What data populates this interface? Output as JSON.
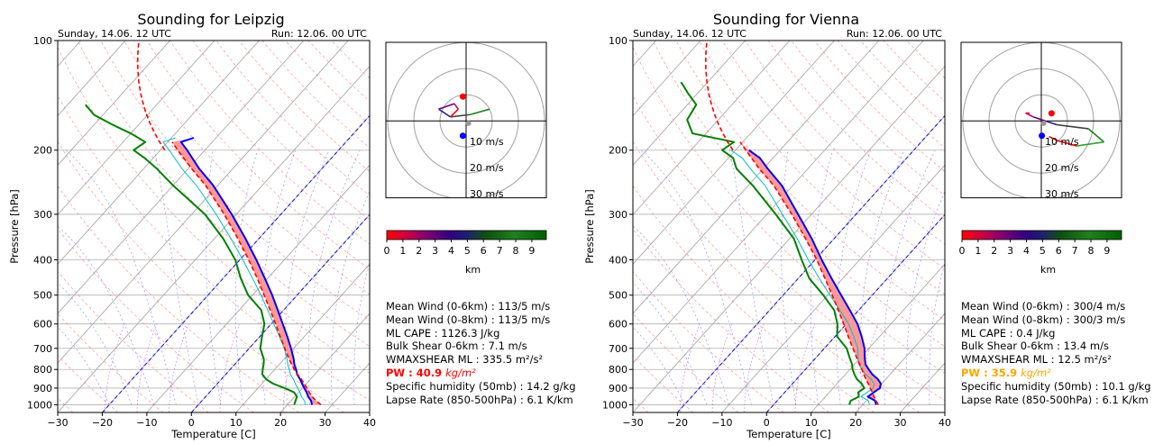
{
  "colors": {
    "profile": "#0000ff",
    "dewpoint": "#008000",
    "parcel": "#ff0000",
    "cape_fill": "#ff9999",
    "vienna_pw": "#ffa500",
    "leipzig_pw": "#ff0000"
  },
  "colorbar": {
    "ticks": [
      "0",
      "1",
      "2",
      "3",
      "4",
      "5",
      "6",
      "7",
      "8",
      "9"
    ],
    "label": "km"
  },
  "hodograph_rings": [
    "10 m/s",
    "20 m/s",
    "30 m/s"
  ],
  "soundings": [
    {
      "title": "Sounding for Leipzig",
      "valid": "Sunday, 14.06. 12 UTC",
      "run": "Run: 12.06. 00 UTC",
      "stats": {
        "mean_wind_06": "Mean Wind (0-6km) : 113/5 m/s",
        "mean_wind_08": "Mean Wind (0-8km) : 113/5 m/s",
        "ml_cape": "ML CAPE : 1126.3 J/kg",
        "bulk_shear": "Bulk Shear 0-6km : 7.1 m/s",
        "wmaxshear": "WMAXSHEAR ML : 335.5 m²/s²",
        "pw_label": "PW : 40.9",
        "pw_unit": "kg/m²",
        "specific_humidity": "Specific humidity (50mb) : 14.2 g/kg",
        "lapse_rate": "Lapse Rate (850-500hPa) : 6.1 K/km"
      }
    },
    {
      "title": "Sounding for Vienna",
      "valid": "Sunday, 14.06. 12 UTC",
      "run": "Run: 12.06. 00 UTC",
      "stats": {
        "mean_wind_06": "Mean Wind (0-6km) : 300/4 m/s",
        "mean_wind_08": "Mean Wind (0-8km) : 300/3 m/s",
        "ml_cape": "ML CAPE : 0.4 J/kg",
        "bulk_shear": "Bulk Shear 0-6km : 13.4 m/s",
        "wmaxshear": "WMAXSHEAR ML : 12.5 m²/s²",
        "pw_label": "PW : 35.9",
        "pw_unit": "kg/m²",
        "specific_humidity": "Specific humidity (50mb) : 10.1 g/kg",
        "lapse_rate": "Lapse Rate (850-500hPa) : 6.1 K/km"
      }
    }
  ],
  "chart_data": [
    {
      "type": "line",
      "title": "Sounding for Leipzig",
      "xlabel": "Temperature [C]",
      "ylabel": "Pressure [hPa]",
      "xlim": [
        -30,
        40
      ],
      "ylim": [
        1050,
        100
      ],
      "yscale": "log",
      "xticks": [
        "−30",
        "−20",
        "−10",
        "0",
        "10",
        "20",
        "30",
        "40"
      ],
      "yticks": [
        "100",
        "200",
        "300",
        "400",
        "500",
        "600",
        "700",
        "800",
        "900",
        "1000"
      ],
      "grid": true,
      "skew": true,
      "series": [
        {
          "p": [
            1000,
            975,
            950,
            925,
            900,
            875,
            850,
            825,
            800,
            775,
            750,
            700,
            650,
            600,
            550,
            500,
            450,
            400,
            350,
            300,
            250,
            225,
            200,
            190,
            185
          ],
          "t": [
            25.5,
            24.5,
            23.0,
            21.8,
            20.4,
            19.0,
            17.6,
            16.0,
            14.8,
            13.4,
            12.2,
            9.4,
            6.2,
            2.6,
            -1.3,
            -5.6,
            -10.6,
            -16.3,
            -23.0,
            -31.0,
            -41.0,
            -47.5,
            -54.0,
            -57.0,
            -55.0
          ]
        },
        {
          "p": [
            1000,
            975,
            950,
            925,
            900,
            875,
            850,
            825,
            800,
            775,
            750,
            700,
            650,
            600,
            550,
            500,
            450,
            400,
            350,
            300,
            250,
            225,
            210,
            200,
            190,
            180,
            170,
            160,
            150
          ],
          "t": [
            21.5,
            21.0,
            20.5,
            19.0,
            16.0,
            12.5,
            10.0,
            8.2,
            7.3,
            6.5,
            5.5,
            2.5,
            0.5,
            -1.5,
            -5.0,
            -11.0,
            -16.0,
            -21.0,
            -28.0,
            -37.0,
            -50.0,
            -57.0,
            -62.0,
            -66.0,
            -65.0,
            -70.0,
            -76.0,
            -82.0,
            -86.0
          ]
        },
        {
          "p": [
            1000,
            975,
            950,
            925,
            900,
            875,
            850,
            825,
            800,
            775,
            750,
            700,
            650,
            600,
            550,
            500,
            450,
            400,
            350,
            300,
            250,
            225,
            200,
            190
          ],
          "t": [
            27.5,
            25.6,
            23.9,
            22.4,
            21.0,
            19.5,
            17.9,
            16.1,
            14.4,
            12.8,
            11.2,
            8.0,
            4.6,
            1.0,
            -3.0,
            -7.4,
            -12.3,
            -18.0,
            -24.7,
            -32.7,
            -42.7,
            -49.2,
            -56.1,
            -59.0
          ]
        }
      ],
      "hodograph": {
        "u": [
          -2,
          -1,
          -1.5,
          -3.5,
          -2,
          0.5,
          3
        ],
        "v": [
          0.5,
          1.5,
          2.2,
          1.5,
          0.5,
          0.8,
          1.5
        ],
        "surface": [
          -1.2,
          -5.5
        ],
        "top": [
          -1.2,
          9.0
        ]
      }
    },
    {
      "type": "line",
      "title": "Sounding for Vienna",
      "xlabel": "Temperature [C]",
      "ylabel": "Pressure [hPa]",
      "xlim": [
        -30,
        40
      ],
      "ylim": [
        1050,
        100
      ],
      "yscale": "log",
      "xticks": [
        "−30",
        "−20",
        "−10",
        "0",
        "10",
        "20",
        "30",
        "40"
      ],
      "yticks": [
        "100",
        "200",
        "300",
        "400",
        "500",
        "600",
        "700",
        "800",
        "900",
        "1000"
      ],
      "grid": true,
      "skew": true,
      "series": [
        {
          "p": [
            1000,
            975,
            950,
            925,
            900,
            875,
            850,
            825,
            800,
            775,
            750,
            700,
            650,
            600,
            550,
            500,
            450,
            400,
            350,
            300,
            250,
            225,
            210,
            205,
            200
          ],
          "t": [
            23.0,
            22.0,
            19.5,
            20.0,
            20.5,
            19.8,
            18.2,
            16.0,
            14.2,
            12.5,
            11.3,
            9.0,
            6.0,
            2.5,
            -2.0,
            -7.0,
            -12.5,
            -18.5,
            -25.0,
            -33.0,
            -42.5,
            -49.0,
            -53.0,
            -55.0,
            -57.0
          ]
        },
        {
          "p": [
            1000,
            975,
            950,
            925,
            900,
            875,
            850,
            825,
            800,
            775,
            750,
            700,
            650,
            600,
            550,
            500,
            450,
            400,
            350,
            300,
            250,
            225,
            210,
            200,
            190,
            180,
            165,
            150,
            140,
            130
          ],
          "t": [
            17.0,
            16.5,
            17.5,
            16.5,
            17.0,
            15.5,
            13.5,
            12.0,
            10.6,
            9.5,
            8.0,
            5.0,
            0.5,
            -2.0,
            -5.5,
            -11.0,
            -17.5,
            -23.0,
            -29.0,
            -38.0,
            -49.0,
            -56.0,
            -59.0,
            -63.0,
            -62.0,
            -73.0,
            -77.0,
            -78.0,
            -82.0,
            -86.0
          ]
        },
        {
          "p": [
            1000,
            975,
            950,
            925,
            900,
            875,
            850,
            825,
            800,
            775,
            750,
            700,
            650,
            600,
            550,
            500,
            450,
            400,
            350,
            300,
            250,
            225,
            200,
            190
          ],
          "t": [
            23.5,
            22.2,
            20.9,
            19.7,
            18.3,
            17.0,
            15.5,
            14.1,
            12.7,
            11.2,
            9.6,
            6.4,
            3.0,
            -0.6,
            -4.6,
            -9.0,
            -14.0,
            -19.6,
            -26.4,
            -34.4,
            -44.3,
            -50.9,
            -57.7,
            -60.6
          ]
        }
      ],
      "hodograph": {
        "u": [
          -1.5,
          -2,
          -1,
          0.5,
          2,
          6,
          8,
          4.5,
          2,
          1
        ],
        "v": [
          1,
          1,
          0.5,
          0,
          -0.5,
          -1,
          -2.7,
          -3.2,
          -2.5,
          -2
        ],
        "surface": [
          0.2,
          -5.5
        ],
        "top": [
          3.8,
          2.8
        ]
      }
    }
  ]
}
